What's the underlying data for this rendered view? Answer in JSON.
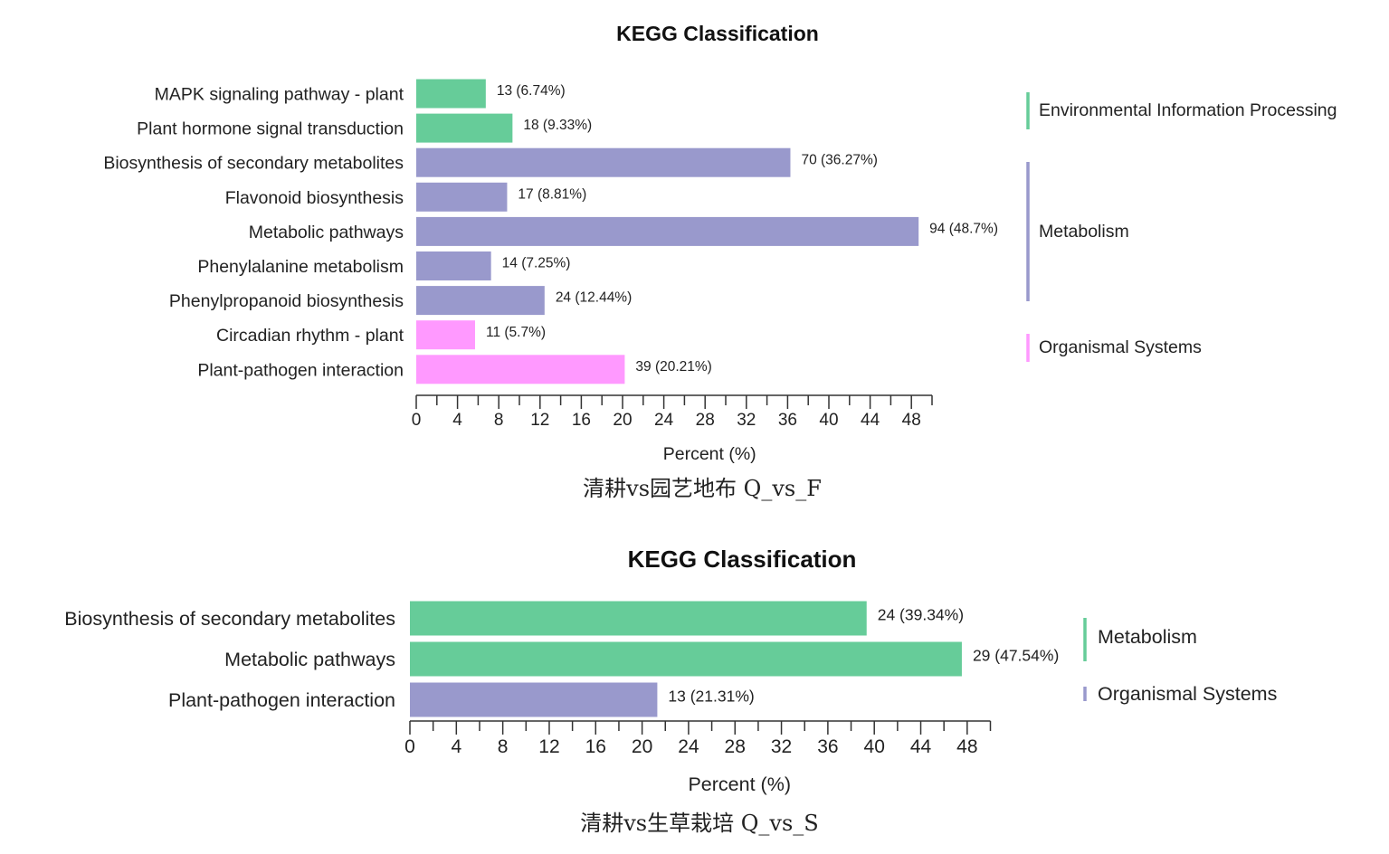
{
  "chart_data": [
    {
      "type": "bar",
      "orientation": "horizontal",
      "title": "KEGG Classification",
      "xlabel": "Percent (%)",
      "xlim": [
        0,
        50
      ],
      "xticks": [
        "0",
        "4",
        "8",
        "12",
        "16",
        "20",
        "24",
        "28",
        "32",
        "36",
        "40",
        "44",
        "48"
      ],
      "caption": "清耕vs园艺地布 Q_vs_F",
      "legend": [
        {
          "label": "Environmental Information Processing",
          "color": "#66cc99"
        },
        {
          "label": "Metabolism",
          "color": "#9999cc"
        },
        {
          "label": "Organismal Systems",
          "color": "#ff99ff"
        }
      ],
      "bars": [
        {
          "category": "MAPK signaling pathway - plant",
          "count": 13,
          "percent": 6.74,
          "label": "13 (6.74%)",
          "group": "Environmental Information Processing",
          "color": "#66cc99"
        },
        {
          "category": "Plant hormone signal transduction",
          "count": 18,
          "percent": 9.33,
          "label": "18 (9.33%)",
          "group": "Environmental Information Processing",
          "color": "#66cc99"
        },
        {
          "category": "Biosynthesis of secondary metabolites",
          "count": 70,
          "percent": 36.27,
          "label": "70 (36.27%)",
          "group": "Metabolism",
          "color": "#9999cc"
        },
        {
          "category": "Flavonoid biosynthesis",
          "count": 17,
          "percent": 8.81,
          "label": "17 (8.81%)",
          "group": "Metabolism",
          "color": "#9999cc"
        },
        {
          "category": "Metabolic pathways",
          "count": 94,
          "percent": 48.7,
          "label": "94 (48.7%)",
          "group": "Metabolism",
          "color": "#9999cc"
        },
        {
          "category": "Phenylalanine metabolism",
          "count": 14,
          "percent": 7.25,
          "label": "14 (7.25%)",
          "group": "Metabolism",
          "color": "#9999cc"
        },
        {
          "category": "Phenylpropanoid biosynthesis",
          "count": 24,
          "percent": 12.44,
          "label": "24 (12.44%)",
          "group": "Metabolism",
          "color": "#9999cc"
        },
        {
          "category": "Circadian rhythm - plant",
          "count": 11,
          "percent": 5.7,
          "label": "11 (5.7%)",
          "group": "Organismal Systems",
          "color": "#ff99ff"
        },
        {
          "category": "Plant-pathogen interaction",
          "count": 39,
          "percent": 20.21,
          "label": "39 (20.21%)",
          "group": "Organismal Systems",
          "color": "#ff99ff"
        }
      ]
    },
    {
      "type": "bar",
      "orientation": "horizontal",
      "title": "KEGG Classification",
      "xlabel": "Percent (%)",
      "xlim": [
        0,
        50
      ],
      "xticks": [
        "0",
        "4",
        "8",
        "12",
        "16",
        "20",
        "24",
        "28",
        "32",
        "36",
        "40",
        "44",
        "48"
      ],
      "caption": "清耕vs生草栽培 Q_vs_S",
      "legend": [
        {
          "label": "Metabolism",
          "color": "#66cc99"
        },
        {
          "label": "Organismal Systems",
          "color": "#9999cc"
        }
      ],
      "bars": [
        {
          "category": "Biosynthesis of secondary metabolites",
          "count": 24,
          "percent": 39.34,
          "label": "24 (39.34%)",
          "group": "Metabolism",
          "color": "#66cc99"
        },
        {
          "category": "Metabolic pathways",
          "count": 29,
          "percent": 47.54,
          "label": "29 (47.54%)",
          "group": "Metabolism",
          "color": "#66cc99"
        },
        {
          "category": "Plant-pathogen interaction",
          "count": 13,
          "percent": 21.31,
          "label": "13 (21.31%)",
          "group": "Organismal Systems",
          "color": "#9999cc"
        }
      ]
    }
  ]
}
